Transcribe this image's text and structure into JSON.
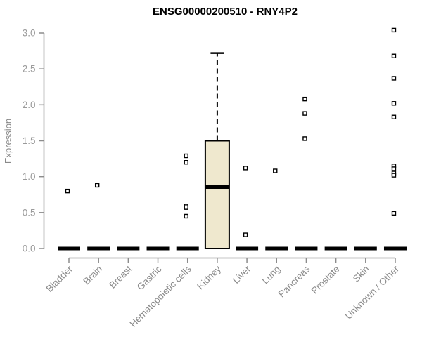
{
  "chart_data": {
    "type": "boxplot",
    "title": "ENSG00000200510 - RNY4P2",
    "ylabel": "Expression",
    "xlabel": "",
    "ylim": [
      0.0,
      3.0
    ],
    "yticks": [
      0.0,
      0.5,
      1.0,
      1.5,
      2.0,
      2.5,
      3.0
    ],
    "ytick_labels": [
      "0.0",
      "0.5",
      "1.0",
      "1.5",
      "2.0",
      "2.5",
      "3.0"
    ],
    "grid": false,
    "legend": null,
    "categories": [
      "Bladder",
      "Brain",
      "Breast",
      "Gastric",
      "Hematopoietic cells",
      "Kidney",
      "Liver",
      "Lung",
      "Pancreas",
      "Prostate",
      "Skin",
      "Unknown / Other"
    ],
    "groups": [
      {
        "category": "Bladder",
        "box": {
          "low": 0,
          "q1": 0,
          "median": 0,
          "q3": 0,
          "high": 0
        },
        "points": [
          0.8
        ]
      },
      {
        "category": "Brain",
        "box": {
          "low": 0,
          "q1": 0,
          "median": 0,
          "q3": 0,
          "high": 0
        },
        "points": [
          0.88
        ]
      },
      {
        "category": "Breast",
        "box": {
          "low": 0,
          "q1": 0,
          "median": 0,
          "q3": 0,
          "high": 0
        },
        "points": []
      },
      {
        "category": "Gastric",
        "box": {
          "low": 0,
          "q1": 0,
          "median": 0,
          "q3": 0,
          "high": 0
        },
        "points": []
      },
      {
        "category": "Hematopoietic cells",
        "box": {
          "low": 0,
          "q1": 0,
          "median": 0,
          "q3": 0,
          "high": 0
        },
        "points": [
          1.29,
          1.2,
          0.59,
          0.57,
          0.45
        ]
      },
      {
        "category": "Kidney",
        "box": {
          "low": 0,
          "q1": 0,
          "median": 0.86,
          "q3": 1.5,
          "high": 2.72
        },
        "points": []
      },
      {
        "category": "Liver",
        "box": {
          "low": 0,
          "q1": 0,
          "median": 0,
          "q3": 0,
          "high": 0
        },
        "points": [
          1.12,
          0.19
        ]
      },
      {
        "category": "Lung",
        "box": {
          "low": 0,
          "q1": 0,
          "median": 0,
          "q3": 0,
          "high": 0
        },
        "points": [
          1.08
        ]
      },
      {
        "category": "Pancreas",
        "box": {
          "low": 0,
          "q1": 0,
          "median": 0,
          "q3": 0,
          "high": 0
        },
        "points": [
          2.08,
          1.88,
          1.53
        ]
      },
      {
        "category": "Prostate",
        "box": {
          "low": 0,
          "q1": 0,
          "median": 0,
          "q3": 0,
          "high": 0
        },
        "points": []
      },
      {
        "category": "Skin",
        "box": {
          "low": 0,
          "q1": 0,
          "median": 0,
          "q3": 0,
          "high": 0
        },
        "points": []
      },
      {
        "category": "Unknown / Other",
        "box": {
          "low": 0,
          "q1": 0,
          "median": 0,
          "q3": 0,
          "high": 0
        },
        "points": [
          3.04,
          2.68,
          2.37,
          2.02,
          1.83,
          1.15,
          1.11,
          1.05,
          1.02,
          0.49
        ]
      }
    ],
    "colors": {
      "title": "#000000",
      "axis": "#8c8c8c",
      "tick_label": "#9a9a9a",
      "axis_label": "#8a8a8a",
      "box_fill": "#efe8ce",
      "box_stroke": "#000000",
      "median": "#000000",
      "zero_bar": "#000000",
      "point_stroke": "#000000",
      "point_fill": "#ffffff"
    }
  }
}
